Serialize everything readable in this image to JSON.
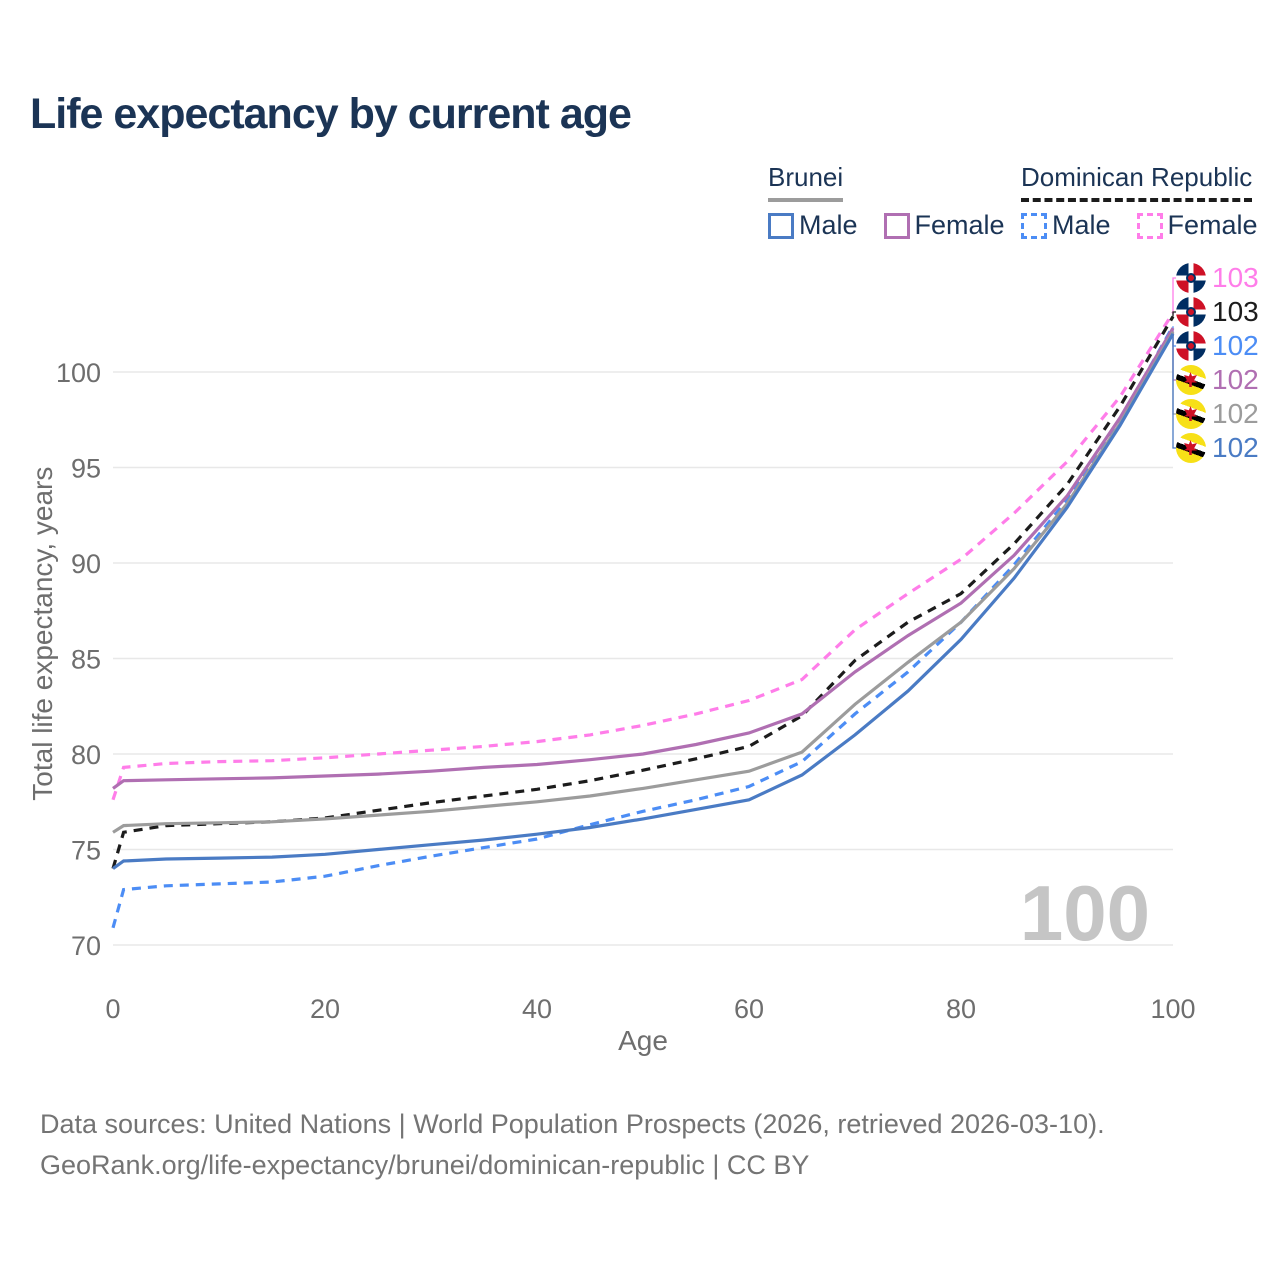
{
  "title": "Life expectancy by current age",
  "legend": {
    "brunei": {
      "title": "Brunei",
      "male": "Male",
      "female": "Female"
    },
    "dominican_republic": {
      "title": "Dominican Republic",
      "male": "Male",
      "female": "Female"
    }
  },
  "watermark": "100",
  "footer": {
    "line1": "Data sources: United Nations | World Population Prospects (2026, retrieved 2026-03-10).",
    "line2": "GeoRank.org/life-expectancy/brunei/dominican-republic | CC BY"
  },
  "end_labels": [
    {
      "value": "103",
      "color": "#ff7de9",
      "flag": "dominican-republic"
    },
    {
      "value": "103",
      "color": "#1c1c1c",
      "flag": "dominican-republic"
    },
    {
      "value": "102",
      "color": "#4c8df5",
      "flag": "dominican-republic"
    },
    {
      "value": "102",
      "color": "#b06fb2",
      "flag": "brunei"
    },
    {
      "value": "102",
      "color": "#9c9c9c",
      "flag": "brunei"
    },
    {
      "value": "102",
      "color": "#4a7bc4",
      "flag": "brunei"
    }
  ],
  "chart_data": {
    "type": "line",
    "title": "Life expectancy by current age",
    "xlabel": "Age",
    "ylabel": "Total life expectancy, years",
    "xlim": [
      0,
      100
    ],
    "ylim": [
      70,
      103.5
    ],
    "xticks": [
      0,
      20,
      40,
      60,
      80,
      100
    ],
    "yticks": [
      70,
      75,
      80,
      85,
      90,
      95,
      100
    ],
    "grid": "horizontal",
    "legend_position": "top-right",
    "x": [
      0,
      1,
      5,
      10,
      15,
      20,
      25,
      30,
      35,
      40,
      45,
      50,
      55,
      60,
      65,
      70,
      75,
      80,
      85,
      90,
      95,
      100
    ],
    "series": [
      {
        "id": "dominican-republic-female",
        "country": "Dominican Republic",
        "sex": "Female",
        "line": "dashed",
        "color": "#ff7de9",
        "end_label": "103",
        "values": [
          77.6,
          79.3,
          79.5,
          79.6,
          79.65,
          79.8,
          80.0,
          80.2,
          80.4,
          80.65,
          81.0,
          81.5,
          82.1,
          82.8,
          83.9,
          86.5,
          88.4,
          90.2,
          92.6,
          95.3,
          98.7,
          103.1
        ]
      },
      {
        "id": "dominican-republic-both",
        "country": "Dominican Republic",
        "sex": "All",
        "line": "dashed",
        "color": "#1c1c1c",
        "end_label": "103",
        "values": [
          74.0,
          75.9,
          76.25,
          76.35,
          76.45,
          76.65,
          77.05,
          77.45,
          77.8,
          78.15,
          78.6,
          79.15,
          79.75,
          80.4,
          82.0,
          84.9,
          86.9,
          88.4,
          91.0,
          94.1,
          98.2,
          102.9
        ]
      },
      {
        "id": "dominican-republic-male",
        "country": "Dominican Republic",
        "sex": "Male",
        "line": "dashed",
        "color": "#4c8df5",
        "end_label": "102",
        "values": [
          70.9,
          72.9,
          73.1,
          73.2,
          73.3,
          73.6,
          74.15,
          74.65,
          75.1,
          75.55,
          76.3,
          77.0,
          77.6,
          78.3,
          79.6,
          82.1,
          84.3,
          86.9,
          89.9,
          93.3,
          97.5,
          102.4
        ]
      },
      {
        "id": "brunei-female",
        "country": "Brunei",
        "sex": "Female",
        "line": "solid",
        "color": "#b06fb2",
        "end_label": "102",
        "values": [
          78.2,
          78.6,
          78.65,
          78.7,
          78.75,
          78.85,
          78.95,
          79.1,
          79.3,
          79.45,
          79.7,
          80.0,
          80.5,
          81.1,
          82.1,
          84.3,
          86.2,
          87.9,
          90.4,
          93.5,
          97.6,
          102.3
        ]
      },
      {
        "id": "brunei-both",
        "country": "Brunei",
        "sex": "All",
        "line": "solid",
        "color": "#9c9c9c",
        "end_label": "102",
        "values": [
          75.9,
          76.25,
          76.35,
          76.4,
          76.45,
          76.6,
          76.8,
          77.0,
          77.25,
          77.5,
          77.8,
          78.2,
          78.65,
          79.1,
          80.1,
          82.6,
          84.8,
          86.9,
          89.7,
          93.1,
          97.3,
          102.1
        ]
      },
      {
        "id": "brunei-male",
        "country": "Brunei",
        "sex": "Male",
        "line": "solid",
        "color": "#4a7bc4",
        "end_label": "102",
        "values": [
          74.0,
          74.4,
          74.5,
          74.55,
          74.6,
          74.75,
          75.0,
          75.25,
          75.5,
          75.8,
          76.15,
          76.6,
          77.1,
          77.6,
          78.9,
          81.0,
          83.3,
          86.0,
          89.2,
          92.9,
          97.2,
          102.0
        ]
      }
    ]
  }
}
